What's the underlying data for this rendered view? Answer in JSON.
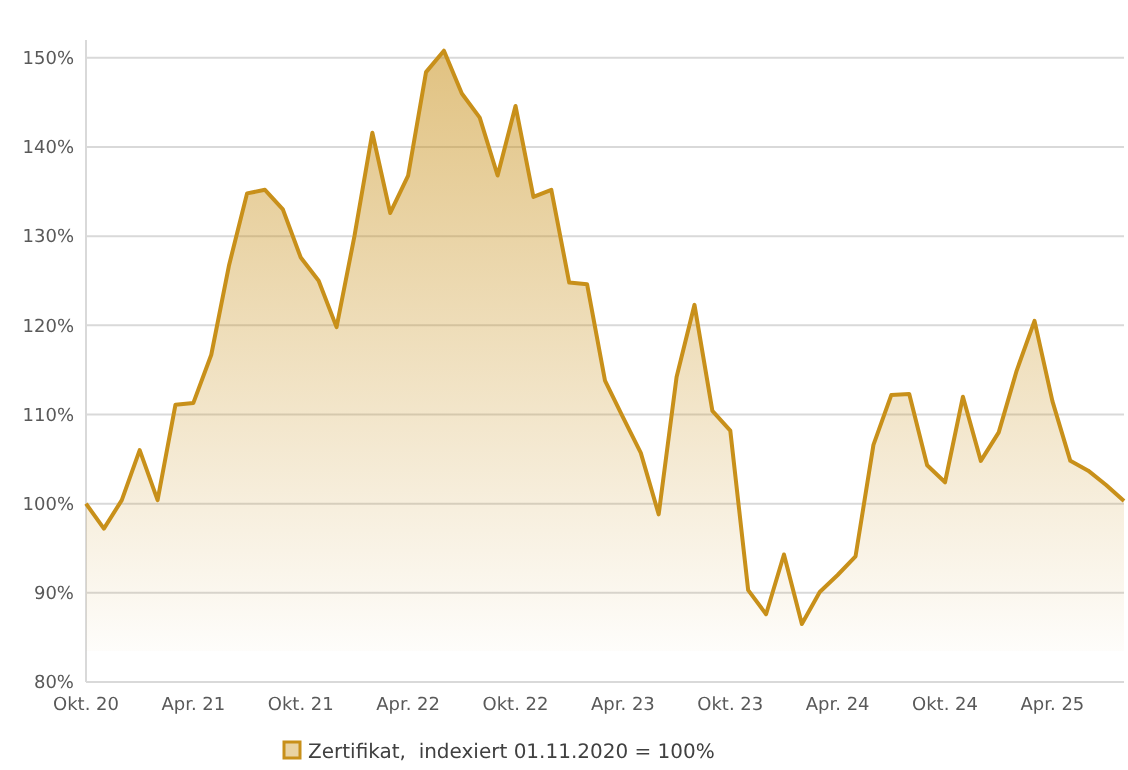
{
  "chart_data": {
    "type": "area",
    "categories": [
      "Okt. 20",
      null,
      null,
      null,
      null,
      null,
      "Apr. 21",
      null,
      null,
      null,
      null,
      null,
      "Okt. 21",
      null,
      null,
      null,
      null,
      null,
      "Apr. 22",
      null,
      null,
      null,
      null,
      null,
      "Okt. 22",
      null,
      null,
      null,
      null,
      null,
      "Apr. 23",
      null,
      null,
      null,
      null,
      null,
      "Okt. 23",
      null,
      null,
      null,
      null,
      null,
      "Apr. 24",
      null,
      null,
      null,
      null,
      null,
      "Okt. 24",
      null,
      null,
      null,
      null,
      null,
      "Apr. 25",
      null,
      null,
      null,
      null
    ],
    "series": [
      {
        "name": "Zertifikat,  indexiert 01.11.2020 = 100%",
        "color": "#c8901a",
        "values": [
          100,
          97.2,
          100.4,
          106,
          100.4,
          111.1,
          111.3,
          116.7,
          126.8,
          134.8,
          135.2,
          133,
          127.6,
          125,
          119.8,
          130,
          141.6,
          132.6,
          136.8,
          148.4,
          150.8,
          146,
          143.3,
          136.8,
          144.6,
          134.4,
          135.2,
          124.8,
          124.6,
          113.8,
          109.7,
          105.7,
          98.8,
          114.2,
          122.3,
          110.4,
          108.2,
          90.3,
          87.6,
          94.3,
          86.5,
          90.1,
          92,
          94.1,
          106.6,
          112.2,
          112.3,
          104.3,
          102.4,
          112,
          104.8,
          108,
          114.9,
          120.5,
          111.5,
          104.8,
          103.7,
          102.1,
          100.3
        ]
      }
    ],
    "ylim": [
      80,
      152
    ],
    "yticks": [
      {
        "value": 80,
        "label": "80%"
      },
      {
        "value": 90,
        "label": "90%"
      },
      {
        "value": 100,
        "label": "100%"
      },
      {
        "value": 110,
        "label": "110%"
      },
      {
        "value": 120,
        "label": "120%"
      },
      {
        "value": 130,
        "label": "130%"
      },
      {
        "value": 140,
        "label": "140%"
      },
      {
        "value": 150,
        "label": "150%"
      }
    ],
    "grid": "y",
    "legend": "bottom",
    "marker": "none"
  }
}
